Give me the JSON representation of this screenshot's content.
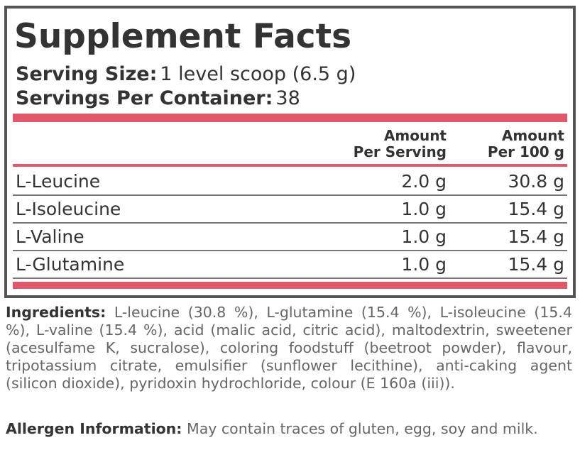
{
  "panel": {
    "title": "Supplement Facts",
    "serving_size": {
      "label": "Serving Size:",
      "value": "1 level scoop (6.5 g)"
    },
    "servings_per_container": {
      "label": "Servings Per Container:",
      "value": "38"
    },
    "columns": [
      {
        "line1": "Amount",
        "line2": "Per Serving"
      },
      {
        "line1": "Amount",
        "line2": "Per 100 g"
      }
    ],
    "rows": [
      [
        "L-Leucine",
        "2.0 g",
        "30.8 g"
      ],
      [
        "L-Isoleucine",
        "1.0 g",
        "15.4 g"
      ],
      [
        "L-Valine",
        "1.0 g",
        "15.4 g"
      ],
      [
        "L-Glutamine",
        "1.0 g",
        "15.4 g"
      ]
    ]
  },
  "ingredients": {
    "label": "Ingredients:",
    "text": "L-leucine (30.8 %), L-glutamine (15.4 %), L-isoleucine (15.4 %), L-valine (15.4 %), acid (malic acid, citric acid), maltodextrin, sweetener (acesulfame K, sucralose), coloring foodstuff (beetroot powder), flavour, tripotassium citrate, emulsifier (sunflower lecithine), anti-caking agent (silicon dioxide), pyridoxin hydrochloride, colour (E 160a (iii))."
  },
  "allergen": {
    "label": "Allergen Information:",
    "text": "May contain traces of gluten, egg, soy and milk."
  }
}
